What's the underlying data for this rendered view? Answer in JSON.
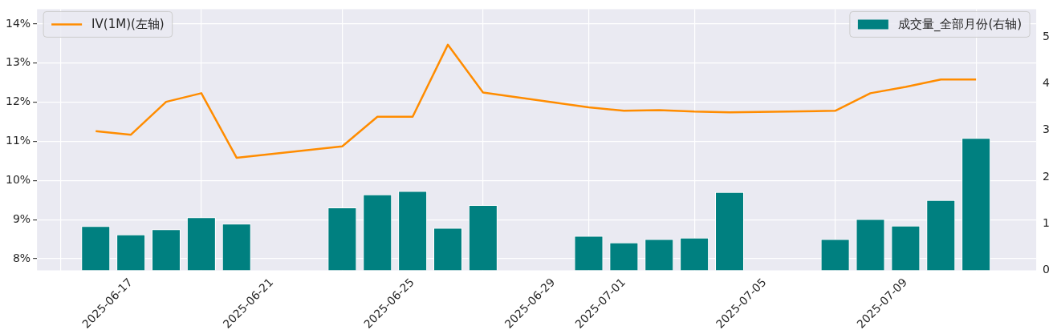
{
  "chart_data": {
    "type": "bar",
    "x": [
      "2025-06-16",
      "2025-06-17",
      "2025-06-18",
      "2025-06-19",
      "2025-06-20",
      "2025-06-23",
      "2025-06-24",
      "2025-06-25",
      "2025-06-26",
      "2025-06-27",
      "2025-06-30",
      "2025-07-01",
      "2025-07-02",
      "2025-07-03",
      "2025-07-04",
      "2025-07-07",
      "2025-07-08",
      "2025-07-09",
      "2025-07-10",
      "2025-07-11"
    ],
    "series": [
      {
        "name": "IV(1M)(左轴)",
        "type": "line",
        "color": "#ff8c00",
        "values": [
          11.26,
          11.17,
          12.01,
          12.23,
          10.58,
          10.87,
          11.63,
          11.63,
          13.47,
          12.25,
          11.87,
          11.78,
          11.8,
          11.76,
          11.74,
          11.78,
          12.23,
          12.39,
          12.58,
          12.58
        ]
      },
      {
        "name": "成交量_全部月份(右轴)",
        "axis": "y2",
        "color": "#008080",
        "values": [
          0.95,
          0.77,
          0.88,
          1.14,
          1.0,
          1.35,
          1.63,
          1.7,
          0.91,
          1.4,
          0.74,
          0.6,
          0.67,
          0.7,
          1.68,
          0.67,
          1.1,
          0.96,
          1.51,
          2.84
        ]
      }
    ],
    "xlim": [
      "2025-06-14T08:00",
      "2025-07-12T17:00"
    ],
    "xticks": [
      {
        "value": "2025-06-17",
        "label": "2025-06-17"
      },
      {
        "value": "2025-06-21",
        "label": "2025-06-21"
      },
      {
        "value": "2025-06-25",
        "label": "2025-06-25"
      },
      {
        "value": "2025-06-29",
        "label": "2025-06-29"
      },
      {
        "value": "2025-07-01",
        "label": "2025-07-01"
      },
      {
        "value": "2025-07-05",
        "label": "2025-07-05"
      },
      {
        "value": "2025-07-09",
        "label": "2025-07-09"
      }
    ],
    "ylim": [
      7.7,
      14.38
    ],
    "yticks": [
      {
        "value": 8,
        "label": "8%"
      },
      {
        "value": 9,
        "label": "9%"
      },
      {
        "value": 10,
        "label": "10%"
      },
      {
        "value": 11,
        "label": "11%"
      },
      {
        "value": 12,
        "label": "12%"
      },
      {
        "value": 13,
        "label": "13%"
      },
      {
        "value": 14,
        "label": "14%"
      }
    ],
    "y2lim": [
      0,
      5.6
    ],
    "y2ticks": [
      0,
      1,
      2,
      3,
      4,
      5
    ],
    "grid": true,
    "legend": "top"
  }
}
